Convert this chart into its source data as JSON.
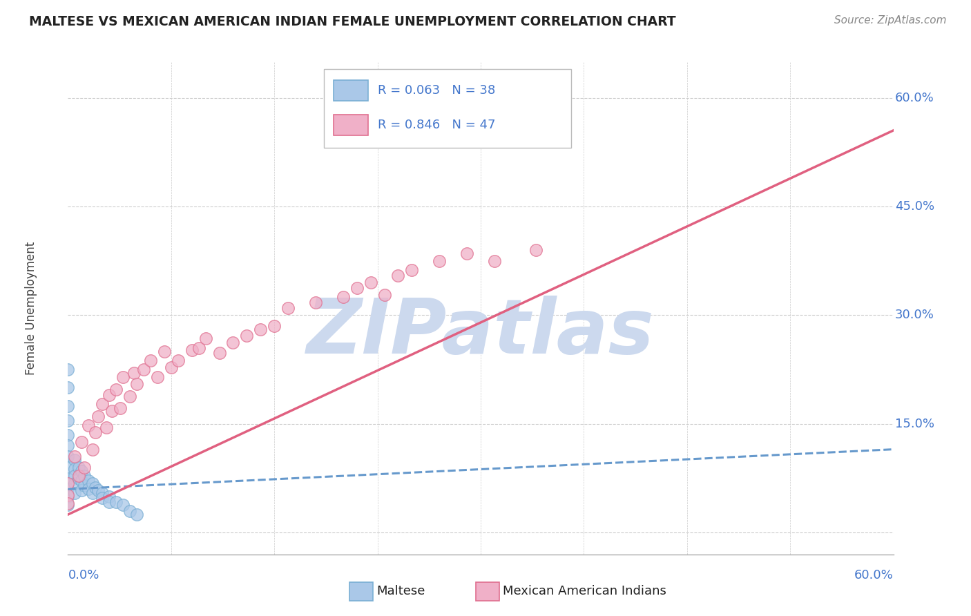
{
  "title": "MALTESE VS MEXICAN AMERICAN INDIAN FEMALE UNEMPLOYMENT CORRELATION CHART",
  "source_text": "Source: ZipAtlas.com",
  "ylabel": "Female Unemployment",
  "watermark": "ZIPatlas",
  "watermark_color": "#ccd9ee",
  "bg_color": "#ffffff",
  "grid_color": "#cccccc",
  "title_color": "#222222",
  "axis_label_color": "#4477cc",
  "right_yticks": [
    0.0,
    0.15,
    0.3,
    0.45,
    0.6
  ],
  "right_ytick_labels": [
    "",
    "15.0%",
    "30.0%",
    "45.0%",
    "60.0%"
  ],
  "xmin": 0.0,
  "xmax": 0.6,
  "ymin": -0.03,
  "ymax": 0.65,
  "series": [
    {
      "name": "Maltese",
      "R": "0.063",
      "N": "38",
      "scatter_color": "#aac8e8",
      "edge_color": "#7aafd4",
      "line_color": "#6699cc",
      "line_style": "dashed",
      "x": [
        0.0,
        0.0,
        0.0,
        0.0,
        0.0,
        0.0,
        0.0,
        0.0,
        0.0,
        0.0,
        0.0,
        0.0,
        0.005,
        0.005,
        0.005,
        0.005,
        0.005,
        0.008,
        0.008,
        0.01,
        0.01,
        0.01,
        0.012,
        0.012,
        0.015,
        0.015,
        0.018,
        0.018,
        0.02,
        0.022,
        0.025,
        0.025,
        0.03,
        0.03,
        0.035,
        0.04,
        0.045,
        0.05
      ],
      "y": [
        0.225,
        0.2,
        0.175,
        0.155,
        0.135,
        0.12,
        0.105,
        0.09,
        0.075,
        0.06,
        0.05,
        0.038,
        0.1,
        0.088,
        0.078,
        0.068,
        0.055,
        0.09,
        0.075,
        0.085,
        0.072,
        0.058,
        0.078,
        0.065,
        0.072,
        0.06,
        0.068,
        0.055,
        0.062,
        0.058,
        0.055,
        0.048,
        0.05,
        0.042,
        0.042,
        0.038,
        0.03,
        0.025
      ],
      "trend_x": [
        0.0,
        0.6
      ],
      "trend_y": [
        0.06,
        0.115
      ]
    },
    {
      "name": "Mexican American Indians",
      "R": "0.846",
      "N": "47",
      "scatter_color": "#f0b0c8",
      "edge_color": "#e07090",
      "line_color": "#e06080",
      "line_style": "solid",
      "x": [
        0.0,
        0.0,
        0.0,
        0.005,
        0.008,
        0.01,
        0.012,
        0.015,
        0.018,
        0.02,
        0.022,
        0.025,
        0.028,
        0.03,
        0.032,
        0.035,
        0.038,
        0.04,
        0.045,
        0.048,
        0.05,
        0.055,
        0.06,
        0.065,
        0.07,
        0.075,
        0.08,
        0.09,
        0.095,
        0.1,
        0.11,
        0.12,
        0.13,
        0.14,
        0.15,
        0.16,
        0.18,
        0.2,
        0.21,
        0.22,
        0.23,
        0.24,
        0.25,
        0.27,
        0.29,
        0.31,
        0.34
      ],
      "y": [
        0.068,
        0.052,
        0.04,
        0.105,
        0.078,
        0.125,
        0.09,
        0.148,
        0.115,
        0.138,
        0.16,
        0.178,
        0.145,
        0.19,
        0.168,
        0.198,
        0.172,
        0.215,
        0.188,
        0.22,
        0.205,
        0.225,
        0.238,
        0.215,
        0.25,
        0.228,
        0.238,
        0.252,
        0.255,
        0.268,
        0.248,
        0.262,
        0.272,
        0.28,
        0.285,
        0.31,
        0.318,
        0.325,
        0.338,
        0.345,
        0.328,
        0.355,
        0.362,
        0.375,
        0.385,
        0.375,
        0.39
      ],
      "trend_x": [
        0.0,
        0.6
      ],
      "trend_y": [
        0.025,
        0.555
      ]
    }
  ],
  "bottom_legend": [
    {
      "name": "Maltese",
      "color": "#aac8e8",
      "edge": "#7aafd4"
    },
    {
      "name": "Mexican American Indians",
      "color": "#f0b0c8",
      "edge": "#e07090"
    }
  ]
}
